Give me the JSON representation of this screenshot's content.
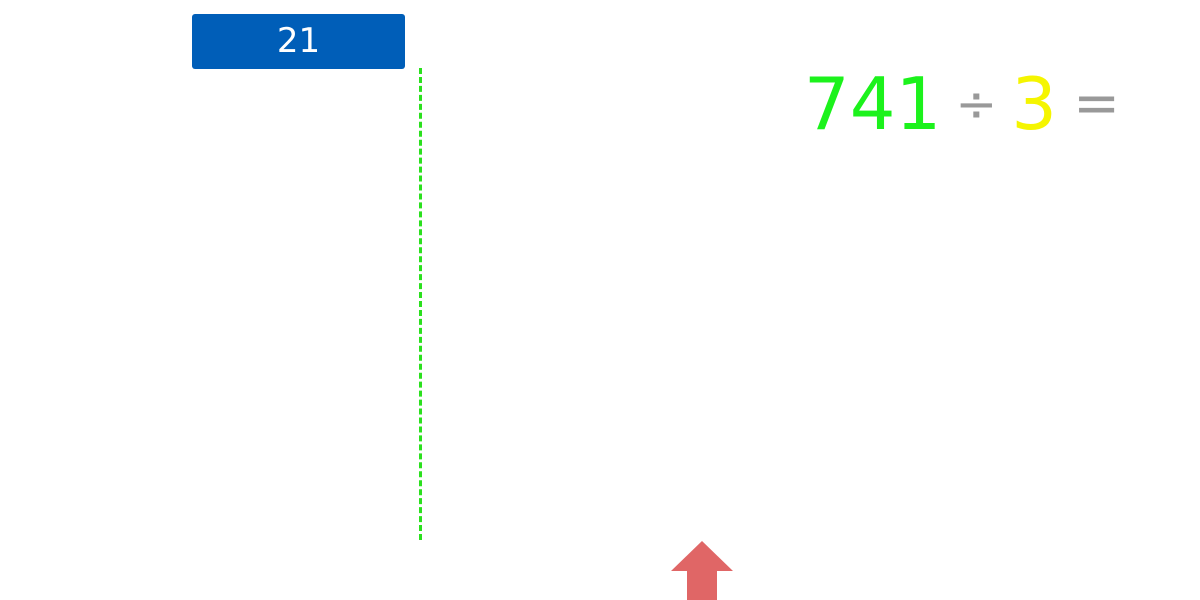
{
  "answer_box": {
    "value": "21"
  },
  "equation": {
    "dividend": "741",
    "operator": "÷",
    "divisor": "3",
    "equals": "="
  },
  "colors": {
    "answer_box_bg": "#005EB8",
    "guide_line": "#2BE01E",
    "dividend": "#1CF21C",
    "divisor": "#F5F500",
    "operator": "#999999",
    "shooter": "#E06666"
  },
  "icons": {
    "shooter": "up-arrow-icon"
  }
}
